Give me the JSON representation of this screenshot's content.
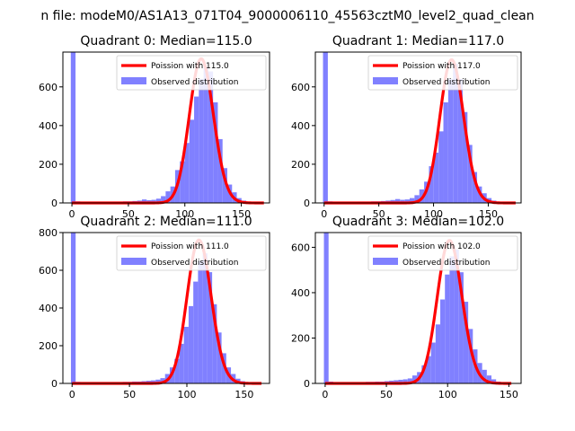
{
  "suptitle": "n file: modeM0/AS1A13_071T04_9000006110_45563cztM0_level2_quad_clean",
  "colors": {
    "poisson": "#ff0000",
    "observed": "#8080ff",
    "axis": "#000000",
    "background": "#ffffff"
  },
  "chart_data": [
    {
      "type": "bar",
      "title": "Quadrant 0: Median=115.0",
      "xlim": [
        -8,
        175
      ],
      "ylim": [
        0,
        780
      ],
      "xticks": [
        0,
        50,
        100,
        150
      ],
      "yticks": [
        0,
        200,
        400,
        600
      ],
      "legend": {
        "placement": "top-right",
        "entries": [
          "Poission with 115.0",
          "Observed distribution"
        ]
      },
      "histogram": {
        "name": "Observed distribution",
        "bin_width": 4.2,
        "bins": [
          [
            -1,
            780
          ],
          [
            3.2,
            8
          ],
          [
            7.4,
            6
          ],
          [
            11.6,
            6
          ],
          [
            15.8,
            6
          ],
          [
            20,
            6
          ],
          [
            24.2,
            6
          ],
          [
            28.4,
            6
          ],
          [
            32.6,
            6
          ],
          [
            36.8,
            7
          ],
          [
            41,
            7
          ],
          [
            45.2,
            8
          ],
          [
            49.4,
            8
          ],
          [
            53.6,
            10
          ],
          [
            57.8,
            12
          ],
          [
            62,
            18
          ],
          [
            66.2,
            14
          ],
          [
            70.4,
            16
          ],
          [
            74.6,
            22
          ],
          [
            78.8,
            35
          ],
          [
            83,
            60
          ],
          [
            87.2,
            85
          ],
          [
            91.4,
            170
          ],
          [
            95.6,
            215
          ],
          [
            99.8,
            310
          ],
          [
            104,
            430
          ],
          [
            108.2,
            550
          ],
          [
            112.4,
            640
          ],
          [
            116.6,
            700
          ],
          [
            120.8,
            680
          ],
          [
            125,
            520
          ],
          [
            129.2,
            330
          ],
          [
            133.4,
            180
          ],
          [
            137.6,
            95
          ],
          [
            141.8,
            55
          ],
          [
            146,
            25
          ],
          [
            150.2,
            12
          ],
          [
            154.4,
            5
          ]
        ]
      },
      "poisson": {
        "name": "Poission with 115.0",
        "x_range": [
          0,
          170
        ],
        "mean": 115.0,
        "peak": 745
      }
    },
    {
      "type": "bar",
      "title": "Quadrant 1: Median=117.0",
      "xlim": [
        -8,
        180
      ],
      "ylim": [
        0,
        780
      ],
      "xticks": [
        0,
        50,
        100,
        150
      ],
      "yticks": [
        0,
        200,
        400,
        600
      ],
      "legend": {
        "placement": "top-right",
        "entries": [
          "Poission with 117.0",
          "Observed distribution"
        ]
      },
      "histogram": {
        "name": "Observed distribution",
        "bin_width": 4.4,
        "bins": [
          [
            -1,
            780
          ],
          [
            3.4,
            8
          ],
          [
            7.8,
            6
          ],
          [
            12.2,
            6
          ],
          [
            16.6,
            6
          ],
          [
            21,
            6
          ],
          [
            25.4,
            6
          ],
          [
            29.8,
            7
          ],
          [
            34.2,
            7
          ],
          [
            38.6,
            7
          ],
          [
            43,
            8
          ],
          [
            47.4,
            8
          ],
          [
            51.8,
            10
          ],
          [
            56.2,
            12
          ],
          [
            60.6,
            15
          ],
          [
            65,
            20
          ],
          [
            69.4,
            16
          ],
          [
            73.8,
            18
          ],
          [
            78.2,
            25
          ],
          [
            82.6,
            40
          ],
          [
            87,
            70
          ],
          [
            91.4,
            110
          ],
          [
            95.8,
            190
          ],
          [
            100.2,
            260
          ],
          [
            104.6,
            370
          ],
          [
            109,
            520
          ],
          [
            113.4,
            640
          ],
          [
            117.8,
            720
          ],
          [
            122.2,
            640
          ],
          [
            126.6,
            470
          ],
          [
            131,
            300
          ],
          [
            135.4,
            160
          ],
          [
            139.8,
            85
          ],
          [
            144.2,
            50
          ],
          [
            148.6,
            25
          ],
          [
            153,
            12
          ],
          [
            157.4,
            6
          ]
        ]
      },
      "poisson": {
        "name": "Poission with 117.0",
        "x_range": [
          0,
          175
        ],
        "mean": 117.0,
        "peak": 740
      }
    },
    {
      "type": "bar",
      "title": "Quadrant 2: Median=111.0",
      "xlim": [
        -8,
        172
      ],
      "ylim": [
        0,
        800
      ],
      "xticks": [
        0,
        50,
        100,
        150
      ],
      "yticks": [
        0,
        200,
        400,
        600,
        800
      ],
      "legend": {
        "placement": "top-right",
        "entries": [
          "Poission with 111.0",
          "Observed distribution"
        ]
      },
      "histogram": {
        "name": "Observed distribution",
        "bin_width": 4.1,
        "bins": [
          [
            -1,
            800
          ],
          [
            3.1,
            8
          ],
          [
            7.2,
            6
          ],
          [
            11.3,
            6
          ],
          [
            15.4,
            6
          ],
          [
            19.5,
            6
          ],
          [
            23.6,
            6
          ],
          [
            27.7,
            6
          ],
          [
            31.8,
            6
          ],
          [
            35.9,
            7
          ],
          [
            40,
            7
          ],
          [
            44.1,
            8
          ],
          [
            48.2,
            8
          ],
          [
            52.3,
            10
          ],
          [
            56.4,
            10
          ],
          [
            60.5,
            12
          ],
          [
            64.6,
            14
          ],
          [
            68.7,
            16
          ],
          [
            72.8,
            20
          ],
          [
            76.9,
            28
          ],
          [
            81,
            50
          ],
          [
            85.1,
            85
          ],
          [
            89.2,
            130
          ],
          [
            93.3,
            210
          ],
          [
            97.4,
            300
          ],
          [
            101.5,
            410
          ],
          [
            105.6,
            540
          ],
          [
            109.7,
            650
          ],
          [
            113.8,
            690
          ],
          [
            117.9,
            590
          ],
          [
            122,
            420
          ],
          [
            126.1,
            270
          ],
          [
            130.2,
            160
          ],
          [
            134.3,
            85
          ],
          [
            138.4,
            50
          ],
          [
            142.5,
            25
          ],
          [
            146.6,
            12
          ],
          [
            150.7,
            6
          ]
        ]
      },
      "poisson": {
        "name": "Poission with 111.0",
        "x_range": [
          0,
          165
        ],
        "mean": 111.0,
        "peak": 760
      }
    },
    {
      "type": "bar",
      "title": "Quadrant 3: Median=102.0",
      "xlim": [
        -8,
        160
      ],
      "ylim": [
        0,
        665
      ],
      "xticks": [
        0,
        50,
        100,
        150
      ],
      "yticks": [
        0,
        200,
        400,
        600
      ],
      "legend": {
        "placement": "top-right",
        "entries": [
          "Poission with 102.0",
          "Observed distribution"
        ]
      },
      "histogram": {
        "name": "Observed distribution",
        "bin_width": 3.8,
        "bins": [
          [
            -1,
            665
          ],
          [
            2.8,
            8
          ],
          [
            6.6,
            6
          ],
          [
            10.4,
            6
          ],
          [
            14.2,
            6
          ],
          [
            18,
            6
          ],
          [
            21.8,
            6
          ],
          [
            25.6,
            6
          ],
          [
            29.4,
            6
          ],
          [
            33.2,
            7
          ],
          [
            37,
            7
          ],
          [
            40.8,
            8
          ],
          [
            44.6,
            8
          ],
          [
            48.4,
            10
          ],
          [
            52.2,
            12
          ],
          [
            56,
            14
          ],
          [
            59.8,
            16
          ],
          [
            63.6,
            18
          ],
          [
            67.4,
            22
          ],
          [
            71.2,
            35
          ],
          [
            75,
            50
          ],
          [
            78.8,
            80
          ],
          [
            82.6,
            120
          ],
          [
            86.4,
            180
          ],
          [
            90.2,
            260
          ],
          [
            94,
            370
          ],
          [
            97.8,
            480
          ],
          [
            101.6,
            560
          ],
          [
            105.4,
            590
          ],
          [
            109.2,
            490
          ],
          [
            113,
            360
          ],
          [
            116.8,
            240
          ],
          [
            120.6,
            150
          ],
          [
            124.4,
            90
          ],
          [
            128.2,
            60
          ],
          [
            132,
            35
          ],
          [
            135.8,
            18
          ],
          [
            139.6,
            8
          ]
        ]
      },
      "poisson": {
        "name": "Poission with 102.0",
        "x_range": [
          0,
          152
        ],
        "mean": 102.0,
        "peak": 630
      }
    }
  ]
}
